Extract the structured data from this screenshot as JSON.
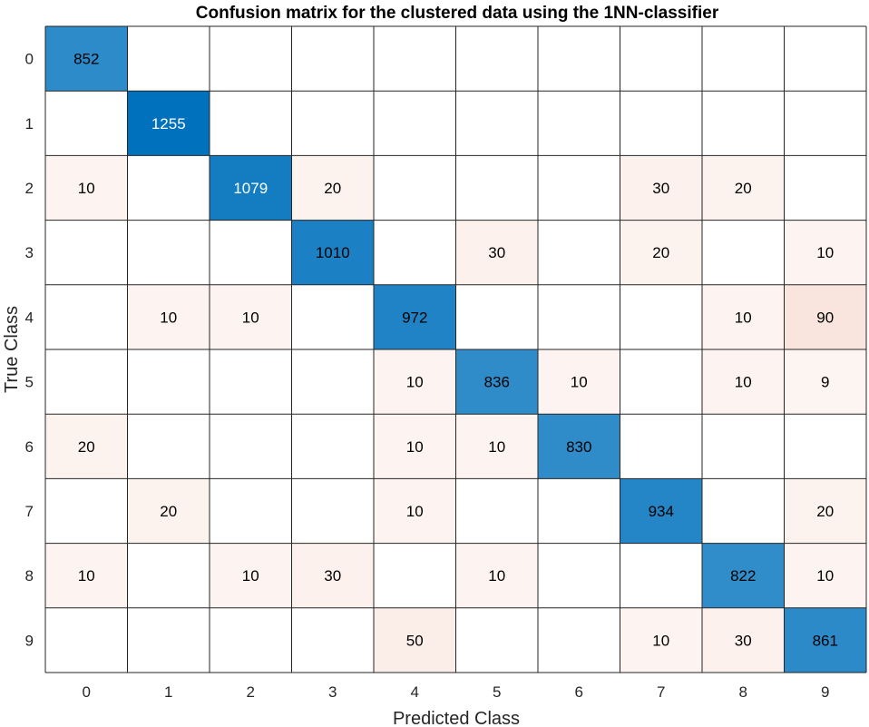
{
  "chart_data": {
    "type": "heatmap",
    "title": "Confusion matrix for the clustered data using the 1NN-classifier",
    "xlabel": "Predicted Class",
    "ylabel": "True Class",
    "x_categories": [
      "0",
      "1",
      "2",
      "3",
      "4",
      "5",
      "6",
      "7",
      "8",
      "9"
    ],
    "y_categories": [
      "0",
      "1",
      "2",
      "3",
      "4",
      "5",
      "6",
      "7",
      "8",
      "9"
    ],
    "matrix": [
      [
        852,
        null,
        null,
        null,
        null,
        null,
        null,
        null,
        null,
        null
      ],
      [
        null,
        1255,
        null,
        null,
        null,
        null,
        null,
        null,
        null,
        null
      ],
      [
        10,
        null,
        1079,
        20,
        null,
        null,
        null,
        30,
        20,
        null
      ],
      [
        null,
        null,
        null,
        1010,
        null,
        30,
        null,
        20,
        null,
        10
      ],
      [
        null,
        10,
        10,
        null,
        972,
        null,
        null,
        null,
        10,
        90
      ],
      [
        null,
        null,
        null,
        null,
        10,
        836,
        10,
        null,
        10,
        9
      ],
      [
        20,
        null,
        null,
        null,
        10,
        10,
        830,
        null,
        null,
        null
      ],
      [
        null,
        20,
        null,
        null,
        10,
        null,
        null,
        934,
        null,
        20
      ],
      [
        10,
        null,
        10,
        30,
        null,
        10,
        null,
        null,
        822,
        10
      ],
      [
        null,
        null,
        null,
        null,
        50,
        null,
        null,
        10,
        30,
        861
      ]
    ],
    "colors": {
      "diagonal": "#0072BD",
      "off_diagonal": "#D95319",
      "grid": "#262626"
    }
  }
}
